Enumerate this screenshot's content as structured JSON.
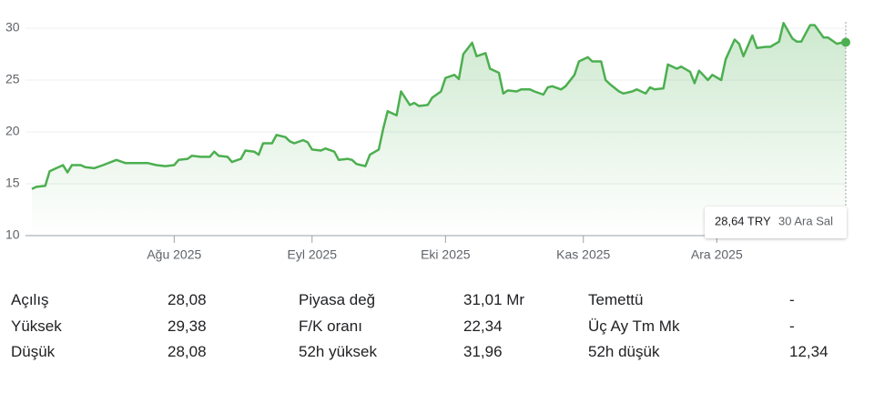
{
  "chart_data": {
    "type": "line",
    "color": "#4caf50",
    "grid": true,
    "x": [
      0,
      1,
      3,
      4,
      6,
      7,
      8,
      9,
      11,
      12,
      14,
      16,
      19,
      21,
      24,
      26,
      28,
      30,
      32,
      33,
      35,
      36,
      38,
      40,
      41,
      42,
      44,
      45,
      47,
      48,
      50,
      51,
      52,
      54,
      55,
      57,
      58,
      59,
      61,
      62,
      63,
      65,
      66,
      68,
      69,
      71,
      72,
      73,
      75,
      76,
      78,
      79,
      80,
      82,
      83,
      85,
      86,
      87,
      89,
      90,
      92,
      93,
      95,
      96,
      97,
      99,
      100,
      102,
      103,
      105,
      106,
      107,
      109,
      110,
      112,
      113,
      115,
      116,
      117,
      119,
      120,
      122,
      123,
      125,
      126,
      128,
      129,
      130,
      132,
      133,
      135,
      136,
      138,
      139,
      140,
      142,
      143,
      145,
      146,
      148,
      149,
      150,
      152,
      153,
      155,
      156,
      158,
      159,
      160,
      162,
      163,
      165,
      166,
      168,
      169,
      171,
      172,
      173,
      175,
      176,
      178,
      179,
      181,
      182,
      183
    ],
    "values": [
      14.5,
      14.7,
      14.8,
      16.2,
      16.6,
      16.8,
      16.1,
      16.8,
      16.8,
      16.6,
      16.5,
      16.8,
      17.3,
      17.0,
      17.0,
      17.0,
      16.8,
      16.7,
      16.8,
      17.3,
      17.4,
      17.7,
      17.6,
      17.6,
      18.1,
      17.7,
      17.6,
      17.1,
      17.4,
      18.2,
      18.1,
      17.8,
      18.9,
      18.9,
      19.7,
      19.5,
      19.1,
      18.9,
      19.2,
      19.0,
      18.3,
      18.2,
      18.4,
      18.1,
      17.3,
      17.4,
      17.3,
      16.9,
      16.7,
      17.8,
      18.3,
      20.3,
      22.0,
      21.6,
      23.9,
      22.6,
      22.8,
      22.5,
      22.6,
      23.3,
      23.9,
      25.2,
      25.5,
      25.1,
      27.5,
      28.6,
      27.3,
      27.6,
      26.1,
      25.7,
      23.7,
      24.0,
      23.9,
      24.1,
      24.1,
      23.9,
      23.6,
      24.3,
      24.4,
      24.1,
      24.4,
      25.5,
      26.8,
      27.2,
      26.8,
      26.8,
      25.0,
      24.6,
      23.9,
      23.7,
      23.9,
      24.1,
      23.7,
      24.3,
      24.1,
      24.2,
      26.5,
      26.1,
      26.3,
      25.8,
      24.7,
      25.9,
      25.0,
      25.5,
      25.0,
      27.0,
      28.9,
      28.5,
      27.3,
      29.3,
      28.1,
      28.2,
      28.2,
      28.7,
      30.5,
      29.0,
      28.7,
      28.7,
      30.3,
      30.3,
      29.1,
      29.1,
      28.5,
      28.6,
      28.64
    ],
    "xlim": [
      0,
      183
    ],
    "xticks": [
      {
        "value": 32,
        "label": "Ağu 2025"
      },
      {
        "value": 63,
        "label": "Eyl 2025"
      },
      {
        "value": 93,
        "label": "Eki 2025"
      },
      {
        "value": 124,
        "label": "Kas 2025"
      },
      {
        "value": 154,
        "label": "Ara 2025"
      }
    ],
    "ylim": [
      10,
      30
    ],
    "yticks": [
      10,
      15,
      20,
      25,
      30
    ],
    "tooltip": {
      "price": "28,64 TRY",
      "date": "30 Ara Sal"
    }
  },
  "stats": {
    "rows": [
      [
        {
          "label": "Açılış",
          "value": "28,08"
        },
        {
          "label": "Piyasa değ",
          "value": "31,01 Mr"
        },
        {
          "label": "Temettü",
          "value": "-"
        }
      ],
      [
        {
          "label": "Yüksek",
          "value": "29,38"
        },
        {
          "label": "F/K oranı",
          "value": "22,34"
        },
        {
          "label": "Üç Ay Tm Mk",
          "value": "-"
        }
      ],
      [
        {
          "label": "Düşük",
          "value": "28,08"
        },
        {
          "label": "52h yüksek",
          "value": "31,96"
        },
        {
          "label": "52h düşük",
          "value": "12,34"
        }
      ]
    ]
  }
}
